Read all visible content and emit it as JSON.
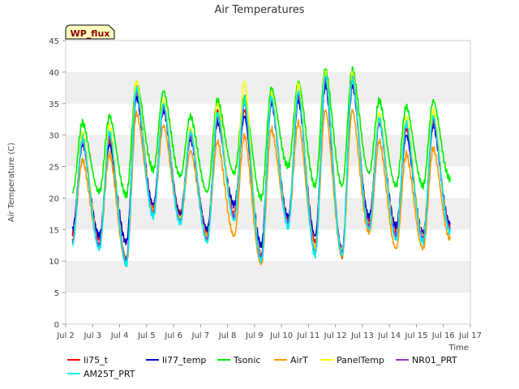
{
  "chart_data": {
    "type": "line",
    "title": "Air Temperatures",
    "xlabel": "Time",
    "ylabel": "Air Temperature (C)",
    "badge": "WP_flux",
    "xlim": [
      2,
      17
    ],
    "ylim": [
      0,
      45
    ],
    "x_ticks": [
      {
        "v": 2,
        "label": "Jul 2"
      },
      {
        "v": 3,
        "label": "Jul 3"
      },
      {
        "v": 4,
        "label": "Jul 4"
      },
      {
        "v": 5,
        "label": "Jul 5"
      },
      {
        "v": 6,
        "label": "Jul 6"
      },
      {
        "v": 7,
        "label": "Jul 7"
      },
      {
        "v": 8,
        "label": "Jul 8"
      },
      {
        "v": 9,
        "label": "Jul 9"
      },
      {
        "v": 10,
        "label": "Jul 10"
      },
      {
        "v": 11,
        "label": "Jul 11"
      },
      {
        "v": 12,
        "label": "Jul 12"
      },
      {
        "v": 13,
        "label": "Jul 13"
      },
      {
        "v": 14,
        "label": "Jul 14"
      },
      {
        "v": 15,
        "label": "Jul 15"
      },
      {
        "v": 16,
        "label": "Jul 16"
      },
      {
        "v": 17,
        "label": "Jul 17"
      }
    ],
    "y_ticks": [
      {
        "v": 0,
        "label": "0"
      },
      {
        "v": 5,
        "label": "5"
      },
      {
        "v": 10,
        "label": "10"
      },
      {
        "v": 15,
        "label": "15"
      },
      {
        "v": 20,
        "label": "20"
      },
      {
        "v": 25,
        "label": "25"
      },
      {
        "v": 30,
        "label": "30"
      },
      {
        "v": 35,
        "label": "35"
      },
      {
        "v": 40,
        "label": "40"
      },
      {
        "v": 45,
        "label": "45"
      }
    ],
    "grid_bands": true,
    "legend_position": "bottom",
    "daily_start": 2.25,
    "series": [
      {
        "name": "li75_t",
        "color": "#ff0000",
        "min": [
          14.5,
          13.5,
          10.5,
          18.5,
          17.5,
          14.5,
          17.5,
          11.0,
          16.5,
          13.0,
          11.0,
          16.5,
          14.5,
          14.0,
          15.5
        ],
        "max": [
          29.5,
          29.0,
          38.0,
          35.0,
          30.0,
          34.0,
          34.0,
          36.0,
          36.5,
          39.0,
          39.0,
          32.5,
          31.0,
          32.5,
          15.5
        ]
      },
      {
        "name": "li77_temp",
        "color": "#0000cc",
        "min": [
          15.0,
          14.0,
          13.0,
          19.0,
          17.5,
          15.0,
          19.0,
          12.5,
          17.0,
          14.0,
          12.0,
          17.0,
          15.5,
          14.5,
          16.0
        ],
        "max": [
          28.5,
          28.5,
          36.0,
          34.0,
          29.5,
          32.0,
          33.0,
          35.0,
          35.5,
          38.0,
          38.0,
          32.0,
          30.0,
          31.5,
          16.0
        ]
      },
      {
        "name": "Tsonic",
        "color": "#00ee00",
        "min": [
          21.0,
          21.0,
          20.5,
          24.5,
          23.5,
          21.0,
          24.0,
          20.0,
          25.0,
          22.0,
          22.0,
          24.0,
          22.0,
          22.0,
          23.0
        ],
        "max": [
          32.0,
          33.0,
          38.5,
          37.0,
          33.0,
          35.5,
          36.0,
          37.5,
          38.5,
          40.5,
          40.5,
          35.5,
          34.5,
          35.5,
          23.0
        ]
      },
      {
        "name": "AirT",
        "color": "#ff9900",
        "min": [
          13.5,
          12.5,
          9.5,
          18.0,
          16.5,
          14.0,
          14.0,
          9.5,
          16.0,
          12.0,
          11.0,
          14.5,
          12.0,
          12.0,
          13.5
        ],
        "max": [
          26.0,
          27.0,
          33.5,
          31.5,
          27.5,
          29.0,
          30.0,
          31.0,
          32.0,
          34.0,
          34.0,
          29.0,
          27.0,
          28.0,
          13.5
        ]
      },
      {
        "name": "PanelTemp",
        "color": "#ffff00",
        "min": [
          13.0,
          12.5,
          10.0,
          17.5,
          16.5,
          13.5,
          17.0,
          10.5,
          16.0,
          12.0,
          11.5,
          15.5,
          14.0,
          14.0,
          15.0
        ],
        "max": [
          30.5,
          31.5,
          38.5,
          35.5,
          31.0,
          35.0,
          38.5,
          36.5,
          38.0,
          40.0,
          40.0,
          33.5,
          33.0,
          34.0,
          15.0
        ]
      },
      {
        "name": "NR01_PRT",
        "color": "#9933cc",
        "min": [
          13.0,
          12.5,
          10.0,
          17.5,
          16.5,
          13.5,
          17.0,
          10.5,
          16.0,
          11.5,
          11.5,
          15.5,
          14.0,
          13.5,
          15.0
        ],
        "max": [
          29.0,
          30.0,
          37.0,
          34.5,
          30.0,
          33.0,
          35.0,
          35.5,
          36.5,
          39.0,
          39.0,
          32.0,
          31.5,
          32.5,
          15.0
        ]
      },
      {
        "name": "AM25T_PRT",
        "color": "#00eeee",
        "min": [
          12.5,
          12.0,
          9.5,
          17.0,
          16.0,
          13.0,
          16.5,
          10.0,
          15.5,
          11.0,
          11.0,
          15.0,
          13.5,
          13.0,
          14.5
        ],
        "max": [
          29.5,
          30.5,
          37.5,
          35.0,
          30.5,
          33.5,
          35.5,
          36.0,
          37.0,
          39.5,
          39.0,
          32.5,
          32.0,
          33.0,
          14.5
        ]
      }
    ]
  }
}
